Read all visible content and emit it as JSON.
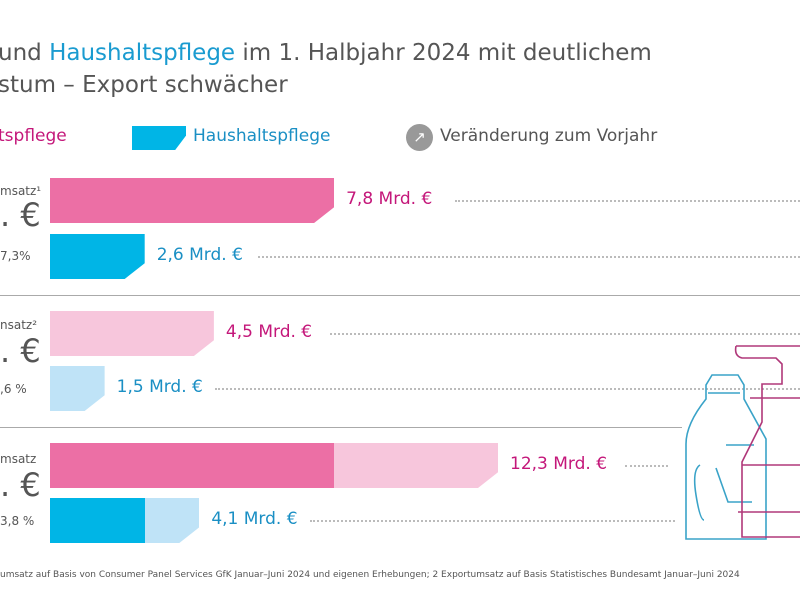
{
  "title": {
    "line1_pre": "und ",
    "line1_hl": "Haushaltspflege",
    "line1_post": " im 1. Halbjahr 2024 mit deutlichem",
    "line2": "stum – Export schwächer"
  },
  "legend": {
    "series1": "tspflege",
    "series2": "Haushaltspflege",
    "change": "Veränderung zum Vorjahr",
    "change_icon": "arrow-up-right-icon"
  },
  "colors": {
    "magenta": "#ec6fa5",
    "magenta_light": "#f7c6dc",
    "blue": "#00b5e6",
    "blue_light": "#bfe3f7",
    "text_magenta": "#c4177a",
    "text_blue": "#1a8fc4"
  },
  "sections": [
    {
      "label": "msatz¹",
      "total": ". €",
      "change": "7,3%"
    },
    {
      "label": "nsatz²",
      "total": ". €",
      "change": ",6 %"
    },
    {
      "label": "msatz",
      "total": ". €",
      "change": "3,8 %"
    }
  ],
  "chart_data": {
    "type": "bar",
    "orientation": "horizontal",
    "unit": "Mrd. €",
    "categories": [
      "msatz¹",
      "nsatz²",
      "msatz"
    ],
    "series": [
      {
        "name": "tspflege",
        "values": [
          7.8,
          4.5,
          12.3
        ],
        "labels": [
          "7,8 Mrd. €",
          "4,5 Mrd. €",
          "12,3 Mrd. €"
        ]
      },
      {
        "name": "Haushaltspflege",
        "values": [
          2.6,
          1.5,
          4.1
        ],
        "labels": [
          "2,6 Mrd. €",
          "1,5 Mrd. €",
          "4,1 Mrd. €"
        ]
      }
    ]
  },
  "footnote": "umsatz auf Basis von Consumer Panel Services GfK Januar–Juni 2024 und eigenen Erhebungen; 2 Exportumsatz auf Basis Statistisches Bundesamt Januar–Juni 2024"
}
